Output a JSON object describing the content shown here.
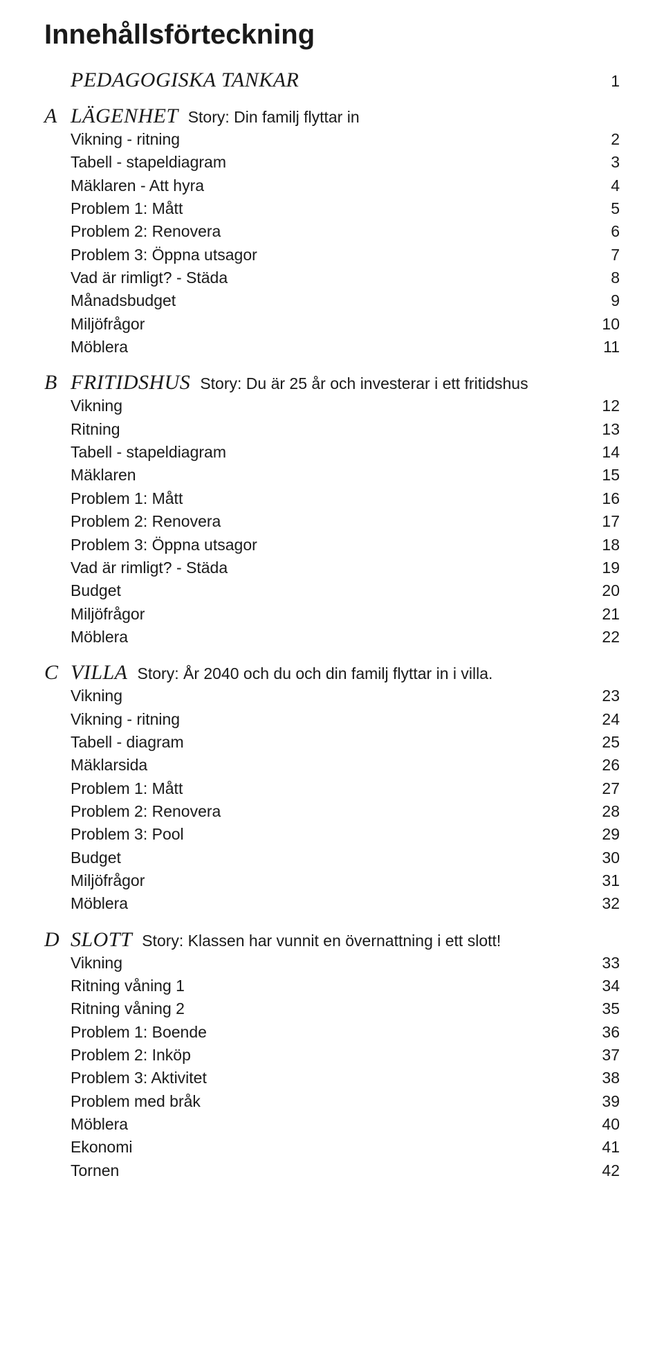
{
  "title": "Innehållsförteckning",
  "colors": {
    "text": "#1a1a1a",
    "bg": "#ffffff"
  },
  "typography": {
    "title_fontsize": 40,
    "heading_fontsize": 30,
    "body_fontsize": 23
  },
  "sections": [
    {
      "heading": "PEDAGOGISKA TANKAR",
      "letter": "",
      "story": "",
      "page": "1",
      "items": []
    },
    {
      "heading": "LÄGENHET",
      "letter": "A",
      "story": "Story: Din familj flyttar in",
      "page": "",
      "items": [
        {
          "label": "Vikning - ritning",
          "page": "2"
        },
        {
          "label": "Tabell - stapeldiagram",
          "page": "3"
        },
        {
          "label": "Mäklaren - Att hyra",
          "page": "4"
        },
        {
          "label": "Problem 1: Mått",
          "page": "5"
        },
        {
          "label": "Problem 2: Renovera",
          "page": "6"
        },
        {
          "label": "Problem 3: Öppna utsagor",
          "page": "7"
        },
        {
          "label": "Vad är rimligt? - Städa",
          "page": "8"
        },
        {
          "label": "Månadsbudget",
          "page": "9"
        },
        {
          "label": "Miljöfrågor",
          "page": "10"
        },
        {
          "label": "Möblera",
          "page": "11"
        }
      ]
    },
    {
      "heading": "FRITIDSHUS",
      "letter": "B",
      "story": "Story: Du är 25 år och investerar i ett fritidshus",
      "page": "",
      "items": [
        {
          "label": "Vikning",
          "page": "12"
        },
        {
          "label": "Ritning",
          "page": "13"
        },
        {
          "label": "Tabell - stapeldiagram",
          "page": "14"
        },
        {
          "label": "Mäklaren",
          "page": "15"
        },
        {
          "label": "Problem 1: Mått",
          "page": "16"
        },
        {
          "label": "Problem 2: Renovera",
          "page": "17"
        },
        {
          "label": "Problem 3: Öppna utsagor",
          "page": "18"
        },
        {
          "label": "Vad är rimligt? - Städa",
          "page": "19"
        },
        {
          "label": "Budget",
          "page": "20"
        },
        {
          "label": "Miljöfrågor",
          "page": "21"
        },
        {
          "label": "Möblera",
          "page": "22"
        }
      ]
    },
    {
      "heading": "VILLA",
      "letter": "C",
      "story": "Story: År 2040 och du och din familj flyttar in i villa.",
      "page": "",
      "items": [
        {
          "label": "Vikning",
          "page": "23"
        },
        {
          "label": "Vikning - ritning",
          "page": "24"
        },
        {
          "label": "Tabell - diagram",
          "page": "25"
        },
        {
          "label": "Mäklarsida",
          "page": "26"
        },
        {
          "label": "Problem 1: Mått",
          "page": "27"
        },
        {
          "label": "Problem 2: Renovera",
          "page": "28"
        },
        {
          "label": "Problem 3: Pool",
          "page": "29"
        },
        {
          "label": "Budget",
          "page": "30"
        },
        {
          "label": "Miljöfrågor",
          "page": "31"
        },
        {
          "label": "Möblera",
          "page": "32"
        }
      ]
    },
    {
      "heading": "SLOTT",
      "letter": "D",
      "story": "Story: Klassen har vunnit en övernattning i ett slott!",
      "page": "",
      "items": [
        {
          "label": "Vikning",
          "page": "33"
        },
        {
          "label": "Ritning våning 1",
          "page": "34"
        },
        {
          "label": "Ritning våning 2",
          "page": "35"
        },
        {
          "label": "Problem 1: Boende",
          "page": "36"
        },
        {
          "label": "Problem 2: Inköp",
          "page": "37"
        },
        {
          "label": "Problem 3: Aktivitet",
          "page": "38"
        },
        {
          "label": "Problem med bråk",
          "page": "39"
        },
        {
          "label": "Möblera",
          "page": "40"
        },
        {
          "label": "Ekonomi",
          "page": "41"
        },
        {
          "label": "Tornen",
          "page": "42"
        }
      ]
    }
  ]
}
